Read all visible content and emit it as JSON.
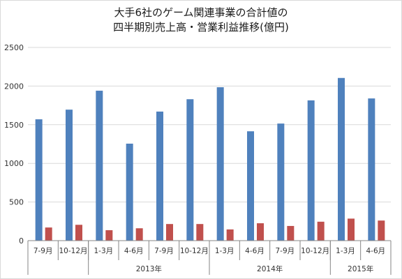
{
  "chart_data": {
    "type": "bar",
    "title_line1": "大手6社のゲーム関連事業の合計値の",
    "title_line2": "四半期別売上高・営業利益推移(億円)",
    "categories": [
      "7-9月",
      "10-12月",
      "1-3月",
      "4-6月",
      "7-9月",
      "10-12月",
      "1-3月",
      "4-6月",
      "7-9月",
      "10-12月",
      "1-3月",
      "4-6月"
    ],
    "year_groups": [
      {
        "label": "",
        "start": 0,
        "end": 1
      },
      {
        "label": "2013年",
        "start": 2,
        "end": 5
      },
      {
        "label": "2014年",
        "start": 6,
        "end": 9
      },
      {
        "label": "2015年",
        "start": 10,
        "end": 11
      }
    ],
    "series": [
      {
        "values": [
          1570,
          1695,
          1940,
          1255,
          1670,
          1830,
          1985,
          1415,
          1515,
          1815,
          2105,
          1840
        ],
        "color": "#4f81bd"
      },
      {
        "values": [
          170,
          205,
          135,
          160,
          215,
          215,
          145,
          225,
          190,
          245,
          285,
          260
        ],
        "color": "#c0504d"
      }
    ],
    "ylim": [
      0,
      2500
    ],
    "yticks": [
      0,
      500,
      1000,
      1500,
      2000,
      2500
    ],
    "grid": true
  }
}
